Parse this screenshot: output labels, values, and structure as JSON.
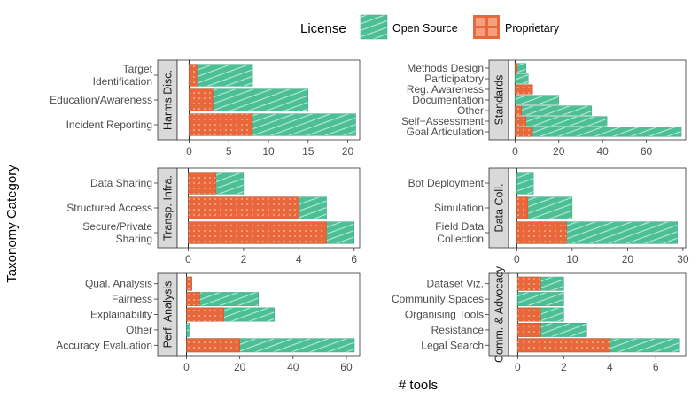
{
  "chart_data": {
    "type": "bar",
    "orientation": "horizontal",
    "stacked": true,
    "xlabel": "# tools",
    "ylabel": "Taxonomy Category",
    "legend": {
      "title": "License",
      "position": "top",
      "entries": [
        "Open Source",
        "Proprietary"
      ]
    },
    "colors": {
      "Open Source": "#4cbf96",
      "Proprietary": "#e8673b"
    },
    "panels": [
      {
        "strip": "Harms Disc.",
        "xlim": [
          -1.5,
          21.5
        ],
        "xticks": [
          0,
          5,
          10,
          15,
          20
        ],
        "categories": [
          "Target\nIdentification",
          "Education/Awareness",
          "Incident Reporting"
        ],
        "proprietary": [
          1,
          3,
          8
        ],
        "open_source": [
          8,
          15,
          21
        ]
      },
      {
        "strip": "Standards",
        "xlim": [
          -3,
          78
        ],
        "xticks": [
          0,
          20,
          40,
          60
        ],
        "categories": [
          "Methods Design",
          "Participatory",
          "Reg. Awareness",
          "Documentation",
          "Other",
          "Self−Assessment",
          "Goal Articulation"
        ],
        "proprietary": [
          1,
          0,
          8,
          0,
          3,
          5,
          8
        ],
        "open_source": [
          5,
          6,
          8,
          20,
          35,
          42,
          76
        ]
      },
      {
        "strip": "Transp. Infra.",
        "xlim": [
          -0.4,
          6.2
        ],
        "xticks": [
          0,
          2,
          4,
          6
        ],
        "categories": [
          "Data Sharing",
          "Structured Access",
          "Secure/Private\nSharing"
        ],
        "proprietary": [
          1,
          4,
          5
        ],
        "open_source": [
          2,
          5,
          6
        ]
      },
      {
        "strip": "Data Coll.",
        "xlim": [
          -1.5,
          30.5
        ],
        "xticks": [
          0,
          10,
          20,
          30
        ],
        "categories": [
          "Bot Deployment",
          "Simulation",
          "Field Data\nCollection"
        ],
        "proprietary": [
          0,
          2,
          9
        ],
        "open_source": [
          3,
          10,
          29
        ]
      },
      {
        "strip": "Perf. Analysis",
        "xlim": [
          -3.5,
          65
        ],
        "xticks": [
          0,
          20,
          40,
          60
        ],
        "categories": [
          "Qual. Analysis",
          "Fairness",
          "Explainability",
          "Other",
          "Accuracy Evaluation"
        ],
        "proprietary": [
          2,
          5,
          14,
          0,
          20
        ],
        "open_source": [
          2,
          27,
          33,
          1,
          63
        ]
      },
      {
        "strip": "Comm. & Advocacy",
        "xlim": [
          -0.4,
          7.3
        ],
        "xticks": [
          0,
          2,
          4,
          6
        ],
        "categories": [
          "Dataset Viz.",
          "Community Spaces",
          "Organising Tools",
          "Resistance",
          "Legal Search"
        ],
        "proprietary": [
          1,
          0,
          1,
          1,
          4
        ],
        "open_source": [
          2,
          2,
          2,
          3,
          7
        ]
      }
    ]
  }
}
